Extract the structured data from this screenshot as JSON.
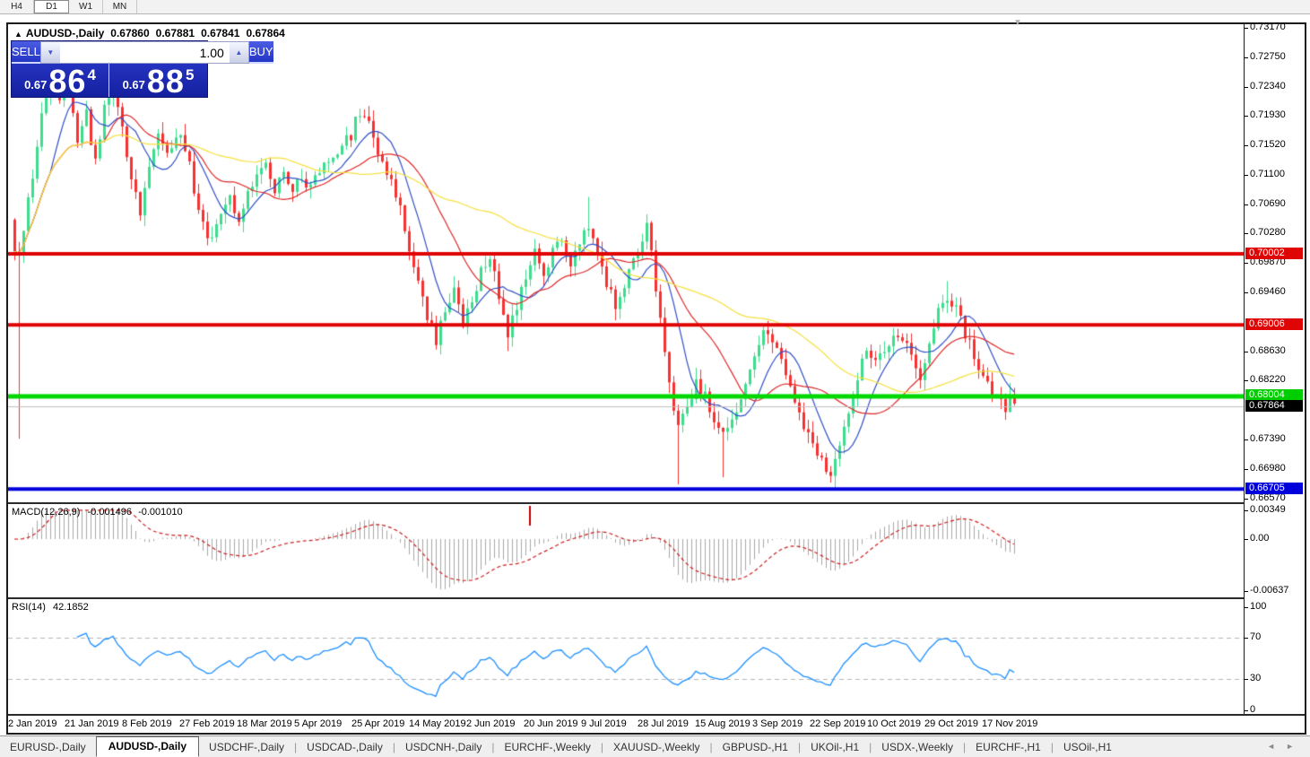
{
  "toolbar": {
    "timeframes": [
      {
        "label": "H4",
        "active": false
      },
      {
        "label": "D1",
        "active": true
      },
      {
        "label": "W1",
        "active": false
      },
      {
        "label": "MN",
        "active": false
      }
    ]
  },
  "header": {
    "symbol": "AUDUSD-,Daily",
    "open": "0.67860",
    "high": "0.67881",
    "low": "0.67841",
    "close": "0.67864"
  },
  "trade_widget": {
    "sell_label": "SELL",
    "buy_label": "BUY",
    "volume": "1.00",
    "sell_price_small": "0.67",
    "sell_price_big": "86",
    "sell_price_sup": "4",
    "buy_price_small": "0.67",
    "buy_price_big": "88",
    "buy_price_sup": "5"
  },
  "price_axis": {
    "ticks": [
      "0.73170",
      "0.72750",
      "0.72340",
      "0.71930",
      "0.71520",
      "0.71100",
      "0.70690",
      "0.70280",
      "0.69870",
      "0.69460",
      "0.68630",
      "0.68220",
      "0.67390",
      "0.66980",
      "0.66570"
    ],
    "badges": [
      {
        "label": "0.70002",
        "value": 0.70002,
        "bg": "#e00505",
        "fg": "#ffffff"
      },
      {
        "label": "0.69006",
        "value": 0.69006,
        "bg": "#e00505",
        "fg": "#ffffff"
      },
      {
        "label": "0.68004",
        "value": 0.68004,
        "bg": "#00ce00",
        "fg": "#ffffff"
      },
      {
        "label": "0.67864",
        "value": 0.67864,
        "bg": "#000000",
        "fg": "#ffffff"
      },
      {
        "label": "0.66705",
        "value": 0.66705,
        "bg": "#0000dd",
        "fg": "#ffffff"
      }
    ]
  },
  "macd": {
    "title": "MACD(12,26,9)",
    "value1": "-0.001496",
    "value2": "-0.001010",
    "ticks": [
      {
        "label": "0.00349",
        "value": 0.00349
      },
      {
        "label": "0.00",
        "value": 0
      },
      {
        "label": "-0.00637",
        "value": -0.00637
      }
    ]
  },
  "rsi": {
    "title": "RSI(14)",
    "value": "42.1852",
    "ticks": [
      {
        "label": "100",
        "value": 100
      },
      {
        "label": "70",
        "value": 70
      },
      {
        "label": "30",
        "value": 30
      },
      {
        "label": "0",
        "value": 0
      }
    ],
    "dashed_levels": [
      70,
      30
    ]
  },
  "date_axis": {
    "labels": [
      "2 Jan 2019",
      "21 Jan 2019",
      "8 Feb 2019",
      "27 Feb 2019",
      "18 Mar 2019",
      "5 Apr 2019",
      "25 Apr 2019",
      "14 May 2019",
      "2 Jun 2019",
      "20 Jun 2019",
      "9 Jul 2019",
      "28 Jul 2019",
      "15 Aug 2019",
      "3 Sep 2019",
      "22 Sep 2019",
      "10 Oct 2019",
      "29 Oct 2019",
      "17 Nov 2019"
    ]
  },
  "tabs": {
    "items": [
      {
        "label": "EURUSD-,Daily",
        "active": false
      },
      {
        "label": "AUDUSD-,Daily",
        "active": true
      },
      {
        "label": "USDCHF-,Daily",
        "active": false
      },
      {
        "label": "USDCAD-,Daily",
        "active": false
      },
      {
        "label": "USDCNH-,Daily",
        "active": false
      },
      {
        "label": "EURCHF-,Weekly",
        "active": false
      },
      {
        "label": "XAUUSD-,Weekly",
        "active": false
      },
      {
        "label": "GBPUSD-,H1",
        "active": false
      },
      {
        "label": "UKOil-,H1",
        "active": false
      },
      {
        "label": "USDX-,Weekly",
        "active": false
      },
      {
        "label": "EURCHF-,H1",
        "active": false
      },
      {
        "label": "USOil-,H1",
        "active": false
      }
    ]
  },
  "chart_data": {
    "type": "candlestick",
    "symbol": "AUDUSD-",
    "timeframe": "Daily",
    "num_bars": 224,
    "price_top": 0.7317,
    "price_range_per_525px": 0.066,
    "close_anchors": [
      [
        0,
        0.7
      ],
      [
        1,
        0.699
      ],
      [
        3,
        0.7075
      ],
      [
        6,
        0.719
      ],
      [
        8,
        0.7232
      ],
      [
        10,
        0.721
      ],
      [
        12,
        0.7238
      ],
      [
        14,
        0.716
      ],
      [
        16,
        0.7198
      ],
      [
        18,
        0.7125
      ],
      [
        20,
        0.721
      ],
      [
        22,
        0.7242
      ],
      [
        24,
        0.718
      ],
      [
        26,
        0.71
      ],
      [
        28,
        0.7062
      ],
      [
        30,
        0.7125
      ],
      [
        32,
        0.7172
      ],
      [
        34,
        0.714
      ],
      [
        36,
        0.7168
      ],
      [
        38,
        0.715
      ],
      [
        40,
        0.7092
      ],
      [
        42,
        0.7042
      ],
      [
        44,
        0.7015
      ],
      [
        46,
        0.7062
      ],
      [
        48,
        0.7082
      ],
      [
        50,
        0.704
      ],
      [
        52,
        0.7082
      ],
      [
        54,
        0.7112
      ],
      [
        56,
        0.713
      ],
      [
        58,
        0.7092
      ],
      [
        60,
        0.7122
      ],
      [
        62,
        0.7088
      ],
      [
        64,
        0.7112
      ],
      [
        66,
        0.7092
      ],
      [
        69,
        0.7122
      ],
      [
        72,
        0.7142
      ],
      [
        75,
        0.7168
      ],
      [
        77,
        0.7202
      ],
      [
        79,
        0.7178
      ],
      [
        81,
        0.7142
      ],
      [
        84,
        0.7108
      ],
      [
        86,
        0.706
      ],
      [
        88,
        0.701
      ],
      [
        90,
        0.696
      ],
      [
        92,
        0.6915
      ],
      [
        94,
        0.688
      ],
      [
        96,
        0.692
      ],
      [
        98,
        0.6955
      ],
      [
        100,
        0.6905
      ],
      [
        102,
        0.6925
      ],
      [
        104,
        0.6975
      ],
      [
        106,
        0.6998
      ],
      [
        108,
        0.694
      ],
      [
        110,
        0.689
      ],
      [
        112,
        0.692
      ],
      [
        114,
        0.697
      ],
      [
        116,
        0.7
      ],
      [
        118,
        0.6975
      ],
      [
        120,
        0.7
      ],
      [
        122,
        0.7022
      ],
      [
        124,
        0.699
      ],
      [
        126,
        0.7012
      ],
      [
        128,
        0.7042
      ],
      [
        130,
        0.7008
      ],
      [
        132,
        0.696
      ],
      [
        134,
        0.693
      ],
      [
        136,
        0.6955
      ],
      [
        138,
        0.699
      ],
      [
        140,
        0.7022
      ],
      [
        141,
        0.7035
      ],
      [
        142,
        0.7
      ],
      [
        143,
        0.695
      ],
      [
        144,
        0.6905
      ],
      [
        145,
        0.686
      ],
      [
        146,
        0.682
      ],
      [
        147,
        0.6785
      ],
      [
        148,
        0.6762
      ],
      [
        150,
        0.6778
      ],
      [
        152,
        0.6818
      ],
      [
        154,
        0.68
      ],
      [
        156,
        0.6772
      ],
      [
        158,
        0.6748
      ],
      [
        160,
        0.677
      ],
      [
        162,
        0.68
      ],
      [
        164,
        0.6845
      ],
      [
        166,
        0.688
      ],
      [
        168,
        0.6893
      ],
      [
        170,
        0.687
      ],
      [
        172,
        0.6832
      ],
      [
        174,
        0.679
      ],
      [
        176,
        0.6762
      ],
      [
        178,
        0.6735
      ],
      [
        180,
        0.671
      ],
      [
        182,
        0.6695
      ],
      [
        184,
        0.6725
      ],
      [
        186,
        0.6778
      ],
      [
        188,
        0.683
      ],
      [
        190,
        0.6868
      ],
      [
        192,
        0.685
      ],
      [
        194,
        0.687
      ],
      [
        196,
        0.6885
      ],
      [
        198,
        0.688
      ],
      [
        200,
        0.6855
      ],
      [
        202,
        0.6832
      ],
      [
        204,
        0.687
      ],
      [
        206,
        0.692
      ],
      [
        208,
        0.6938
      ],
      [
        210,
        0.6922
      ],
      [
        212,
        0.689
      ],
      [
        214,
        0.6855
      ],
      [
        216,
        0.6825
      ],
      [
        218,
        0.6805
      ],
      [
        220,
        0.6788
      ],
      [
        221,
        0.6775
      ],
      [
        222,
        0.6795
      ],
      [
        223,
        0.6786
      ]
    ],
    "wick_overrides": [
      {
        "bar": 1,
        "low": 0.6741
      },
      {
        "bar": 12,
        "high": 0.7268
      },
      {
        "bar": 22,
        "high": 0.7295
      },
      {
        "bar": 94,
        "low": 0.6866
      },
      {
        "bar": 110,
        "low": 0.6864
      },
      {
        "bar": 128,
        "high": 0.708
      },
      {
        "bar": 148,
        "low": 0.6677
      },
      {
        "bar": 158,
        "low": 0.6687
      },
      {
        "bar": 183,
        "low": 0.6671
      },
      {
        "bar": 208,
        "high": 0.6962
      }
    ],
    "first_bar_open": 0.7048,
    "noise_amplitude": 0.0009,
    "seed": 20191126,
    "moving_averages": [
      {
        "period": 9,
        "color": "#3050c8"
      },
      {
        "period": 21,
        "color": "#e02828"
      },
      {
        "period": 55,
        "color": "#f6e03c"
      }
    ],
    "levels": [
      {
        "value": 0.70002,
        "color": "#e00505",
        "width": 4
      },
      {
        "value": 0.69006,
        "color": "#e00505",
        "width": 4
      },
      {
        "value": 0.68004,
        "color": "#00d800",
        "width": 5
      },
      {
        "value": 0.66705,
        "color": "#0000dd",
        "width": 4
      }
    ],
    "current_price": {
      "value": 0.67864,
      "color": "#bdbdbd"
    },
    "candle_colors": {
      "bull": "#3ddd8d",
      "bear": "#f53232"
    },
    "macd_params": {
      "fast": 12,
      "slow": 26,
      "signal": 9,
      "hist_color": "#a8a8a8",
      "signal_color": "#cc1f1f"
    },
    "macd_marker": {
      "bar": 115,
      "color": "#c00000"
    },
    "rsi_params": {
      "period": 14,
      "line_color": "#1e90ff"
    }
  }
}
